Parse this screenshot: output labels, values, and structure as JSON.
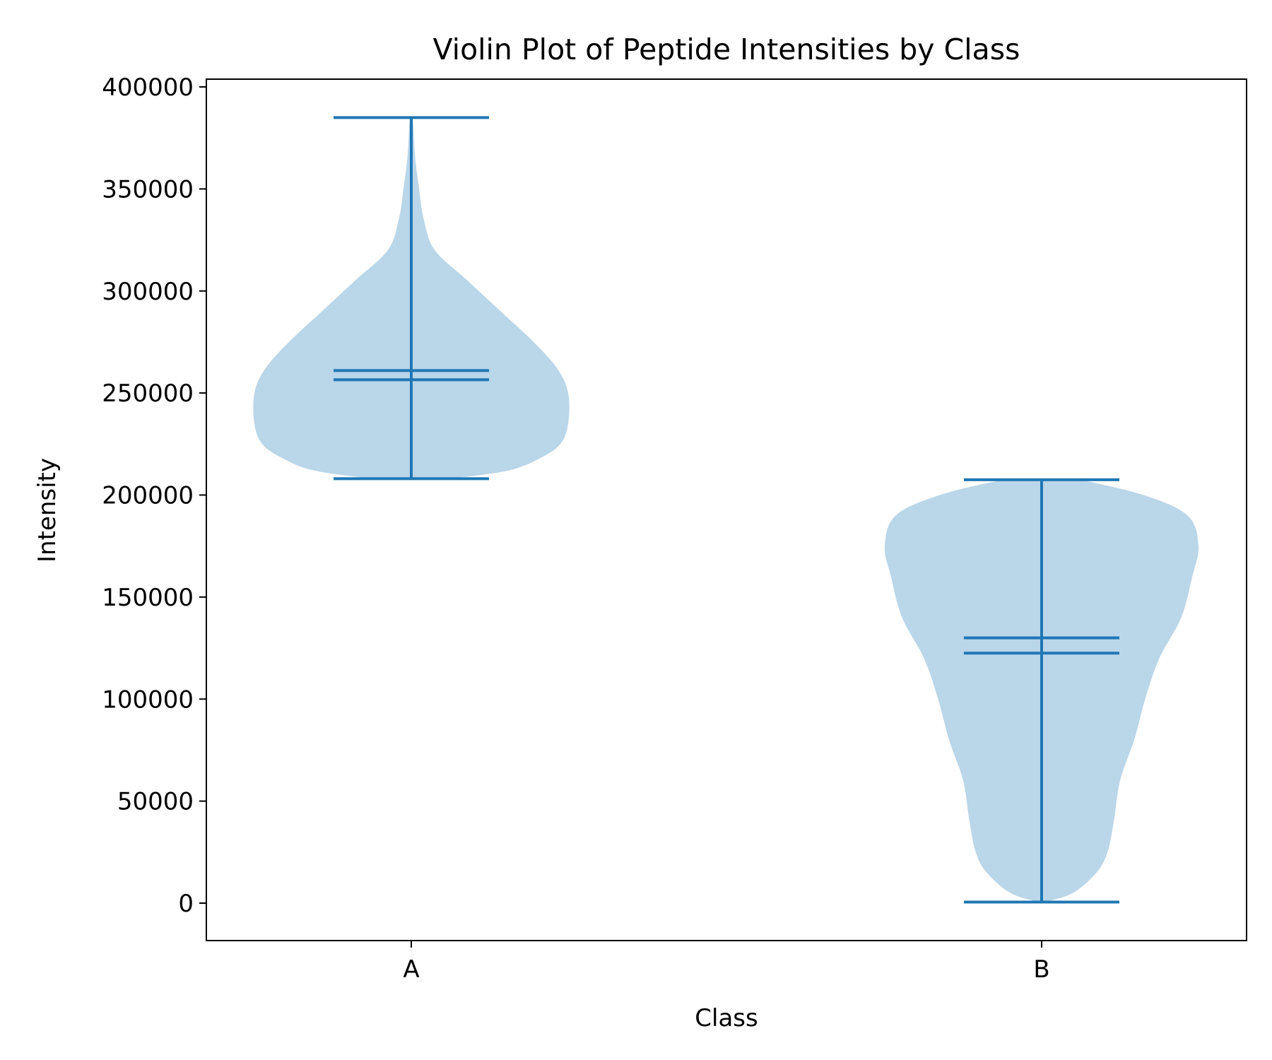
{
  "chart_data": {
    "type": "violin",
    "title": "Violin Plot of Peptide Intensities by Class",
    "xlabel": "Class",
    "ylabel": "Intensity",
    "categories": [
      "A",
      "B"
    ],
    "ylim": [
      -18000,
      403000
    ],
    "yticks": [
      0,
      50000,
      100000,
      150000,
      200000,
      250000,
      300000,
      350000,
      400000
    ],
    "ytick_labels": [
      "0",
      "50000",
      "100000",
      "150000",
      "200000",
      "250000",
      "300000",
      "350000",
      "400000"
    ],
    "grid": false,
    "colors": {
      "body": "#bad6e9",
      "lines": "#1f77b4"
    },
    "series": [
      {
        "category": "A",
        "min": 208000,
        "max": 385000,
        "mean": 261000,
        "median": 256500,
        "density": [
          [
            208000,
            0.25
          ],
          [
            212000,
            0.62
          ],
          [
            218000,
            0.82
          ],
          [
            225000,
            0.95
          ],
          [
            235000,
            1.0
          ],
          [
            250000,
            1.0
          ],
          [
            262000,
            0.93
          ],
          [
            275000,
            0.78
          ],
          [
            290000,
            0.57
          ],
          [
            305000,
            0.36
          ],
          [
            320000,
            0.15
          ],
          [
            335000,
            0.08
          ],
          [
            350000,
            0.05
          ],
          [
            365000,
            0.025
          ],
          [
            378000,
            0.015
          ],
          [
            385000,
            0.01
          ]
        ]
      },
      {
        "category": "B",
        "min": 500,
        "max": 207500,
        "mean": 130000,
        "median": 122500,
        "density": [
          [
            500,
            0.02
          ],
          [
            5000,
            0.2
          ],
          [
            15000,
            0.35
          ],
          [
            25000,
            0.42
          ],
          [
            40000,
            0.46
          ],
          [
            60000,
            0.5
          ],
          [
            80000,
            0.59
          ],
          [
            100000,
            0.66
          ],
          [
            120000,
            0.75
          ],
          [
            140000,
            0.89
          ],
          [
            160000,
            0.96
          ],
          [
            175000,
            1.0
          ],
          [
            190000,
            0.93
          ],
          [
            200000,
            0.65
          ],
          [
            207500,
            0.25
          ]
        ]
      }
    ]
  }
}
